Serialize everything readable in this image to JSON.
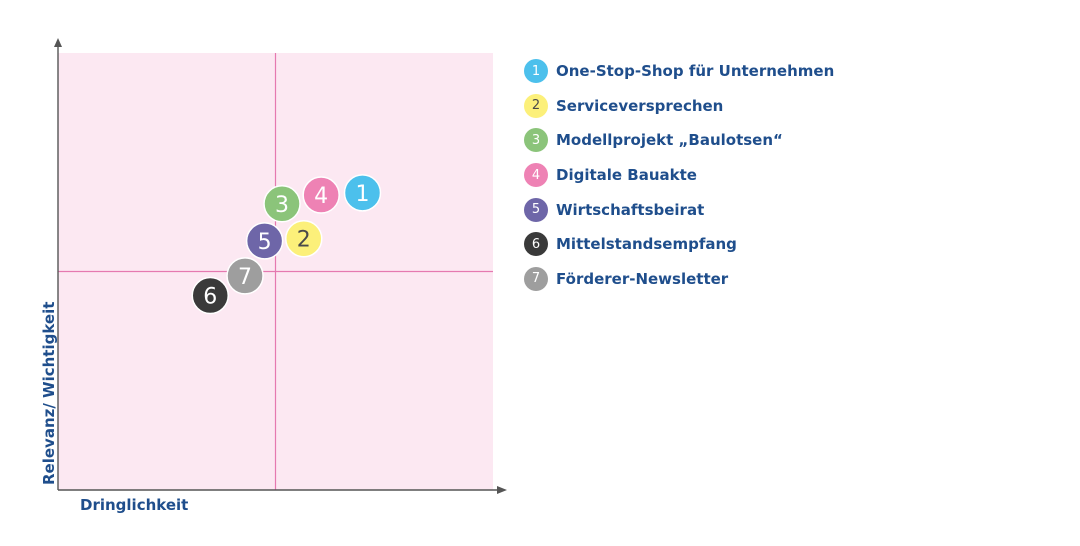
{
  "chart_data": {
    "type": "scatter",
    "title": "",
    "xlabel": "Dringlichkeit",
    "ylabel": "Relevanz/ Wichtigkeit",
    "xlim": [
      0,
      10
    ],
    "ylim": [
      0,
      10
    ],
    "grid": false,
    "quadrant_divider": {
      "x": 5,
      "y": 5
    },
    "legend_position": "right",
    "colors": {
      "plot_background": "#fce8f2",
      "divider": "#e579b0",
      "axis": "#555555",
      "label_text": "#1f4e8c"
    },
    "points": [
      {
        "id": "1",
        "label": "One-Stop-Shop für Unternehmen",
        "x": 7.0,
        "y": 6.8,
        "color": "#4cc0ec",
        "text_color": "#ffffff"
      },
      {
        "id": "2",
        "label": "Serviceversprechen",
        "x": 5.65,
        "y": 5.75,
        "color": "#fcf07a",
        "text_color": "#4a4a4a"
      },
      {
        "id": "3",
        "label": "Modellprojekt „Baulotsen“",
        "x": 5.15,
        "y": 6.55,
        "color": "#8bc47a",
        "text_color": "#ffffff"
      },
      {
        "id": "4",
        "label": "Digitale Bauakte",
        "x": 6.05,
        "y": 6.75,
        "color": "#ee82b4",
        "text_color": "#ffffff"
      },
      {
        "id": "5",
        "label": "Wirtschaftsbeirat",
        "x": 4.75,
        "y": 5.7,
        "color": "#6e66a8",
        "text_color": "#ffffff"
      },
      {
        "id": "6",
        "label": "Mittelstandsempfang",
        "x": 3.5,
        "y": 4.45,
        "color": "#3a3a3a",
        "text_color": "#ffffff"
      },
      {
        "id": "7",
        "label": "Förderer-Newsletter",
        "x": 4.3,
        "y": 4.9,
        "color": "#9e9e9e",
        "text_color": "#ffffff"
      }
    ]
  }
}
